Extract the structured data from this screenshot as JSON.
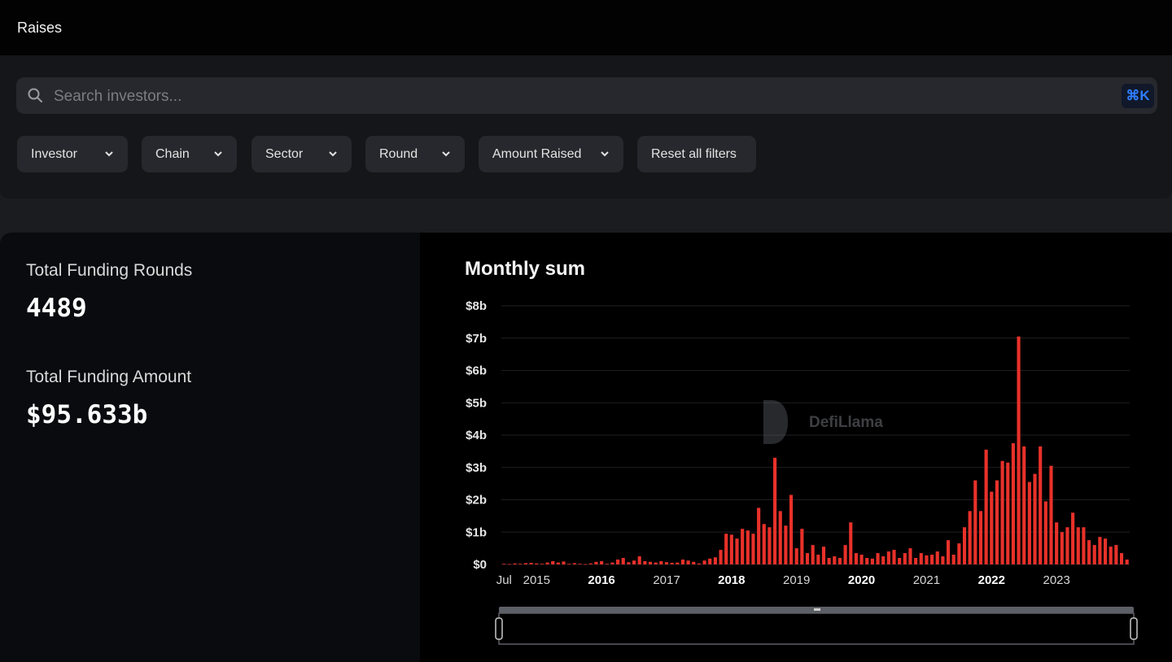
{
  "header": {
    "title": "Raises"
  },
  "search": {
    "placeholder": "Search investors...",
    "shortcut": "⌘K"
  },
  "filters": [
    "Investor",
    "Chain",
    "Sector",
    "Round",
    "Amount Raised"
  ],
  "reset_label": "Reset all filters",
  "stats": {
    "rounds_label": "Total Funding Rounds",
    "rounds_value": "4489",
    "amount_label": "Total Funding Amount",
    "amount_value": "$95.633b"
  },
  "watermark": "DefiLlama",
  "colors": {
    "bar": "#e8312a",
    "accent": "#2f7dff"
  },
  "chart_data": {
    "type": "bar",
    "title": "Monthly sum",
    "xlabel": "",
    "ylabel": "",
    "ylim": [
      0,
      8
    ],
    "y_unit": "b",
    "y_ticks": [
      "$0",
      "$1b",
      "$2b",
      "$3b",
      "$4b",
      "$5b",
      "$6b",
      "$7b",
      "$8b"
    ],
    "x_tick_labels": [
      {
        "label": "Jul",
        "bold": false
      },
      {
        "label": "2015",
        "bold": false
      },
      {
        "label": "2016",
        "bold": true
      },
      {
        "label": "2017",
        "bold": false
      },
      {
        "label": "2018",
        "bold": true
      },
      {
        "label": "2019",
        "bold": false
      },
      {
        "label": "2020",
        "bold": true
      },
      {
        "label": "2021",
        "bold": false
      },
      {
        "label": "2022",
        "bold": true
      },
      {
        "label": "2023",
        "bold": false
      }
    ],
    "start_month": "2014-07",
    "grid": true,
    "values": [
      0.02,
      0.01,
      0.03,
      0.02,
      0.04,
      0.05,
      0.03,
      0.02,
      0.06,
      0.1,
      0.06,
      0.09,
      0.02,
      0.04,
      0.02,
      0.01,
      0.03,
      0.08,
      0.1,
      0.02,
      0.06,
      0.15,
      0.2,
      0.07,
      0.12,
      0.25,
      0.1,
      0.08,
      0.06,
      0.1,
      0.07,
      0.05,
      0.06,
      0.15,
      0.12,
      0.08,
      0.03,
      0.12,
      0.18,
      0.22,
      0.45,
      0.95,
      0.92,
      0.8,
      1.1,
      1.05,
      0.95,
      1.75,
      1.25,
      1.15,
      3.3,
      1.65,
      1.2,
      2.15,
      0.5,
      1.1,
      0.35,
      0.6,
      0.3,
      0.55,
      0.2,
      0.25,
      0.2,
      0.6,
      1.3,
      0.35,
      0.3,
      0.2,
      0.18,
      0.35,
      0.25,
      0.4,
      0.45,
      0.2,
      0.35,
      0.5,
      0.2,
      0.35,
      0.28,
      0.3,
      0.4,
      0.25,
      0.75,
      0.3,
      0.65,
      1.15,
      1.65,
      2.6,
      1.65,
      3.55,
      2.25,
      2.6,
      3.2,
      3.15,
      3.75,
      7.05,
      3.65,
      2.55,
      2.8,
      3.65,
      1.95,
      3.05,
      1.3,
      1.0,
      1.15,
      1.6,
      1.15,
      1.15,
      0.75,
      0.6,
      0.85,
      0.8,
      0.55,
      0.6,
      0.35,
      0.15
    ]
  }
}
